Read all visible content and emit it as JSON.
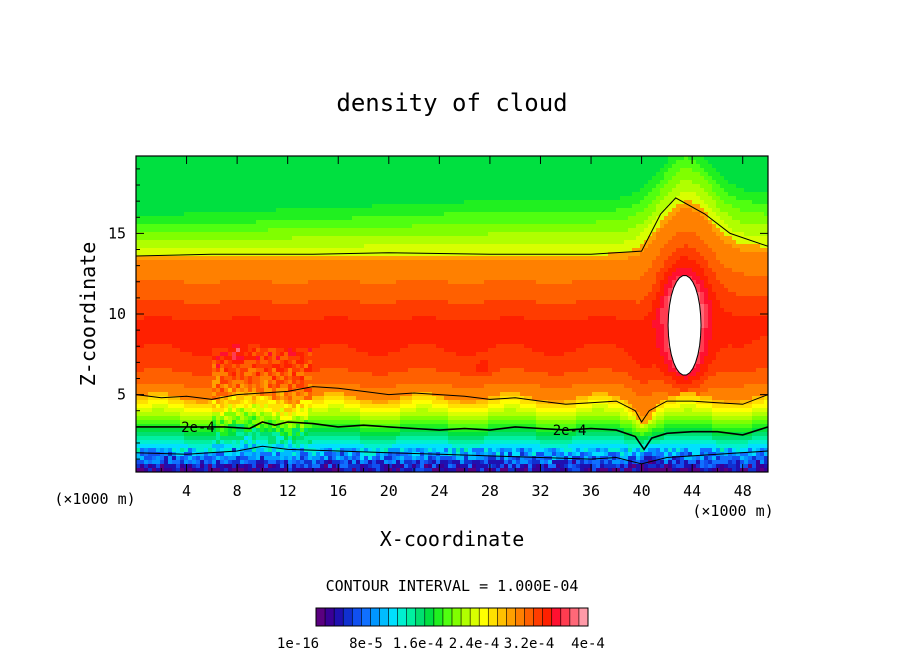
{
  "chart_data": {
    "type": "contour",
    "title": "density of cloud",
    "xlabel": "X-coordinate",
    "ylabel": "Z-coordinate",
    "x_unit_left": "(×1000 m)",
    "x_unit_right": "(×1000 m)",
    "xlim": [
      0,
      50
    ],
    "ylim": [
      0.2,
      19.8
    ],
    "xticks": [
      "4",
      "8",
      "12",
      "16",
      "20",
      "24",
      "28",
      "32",
      "36",
      "40",
      "44",
      "48"
    ],
    "yticks": [
      "5",
      "10",
      "15"
    ],
    "contour_interval_text": "CONTOUR INTERVAL = 1.000E-04",
    "contour_labels": [
      {
        "text": "2e-4",
        "x": 4.9,
        "z": 3.0
      },
      {
        "text": "2e-4",
        "x": 34.3,
        "z": 2.8
      }
    ],
    "contour_lines": [
      {
        "level": "1e-4",
        "points": [
          [
            0,
            13.6
          ],
          [
            6,
            13.7
          ],
          [
            14,
            13.7
          ],
          [
            20,
            13.8
          ],
          [
            28,
            13.7
          ],
          [
            36,
            13.7
          ],
          [
            40,
            13.9
          ],
          [
            41.5,
            16.2
          ],
          [
            42.7,
            17.2
          ],
          [
            45,
            16.2
          ],
          [
            47,
            15.0
          ],
          [
            50,
            14.2
          ]
        ]
      },
      {
        "level": "1e-4",
        "points": [
          [
            0,
            5.0
          ],
          [
            2,
            4.8
          ],
          [
            4,
            4.9
          ],
          [
            6,
            4.7
          ],
          [
            8,
            5.0
          ],
          [
            10,
            5.1
          ],
          [
            12,
            5.2
          ],
          [
            14,
            5.5
          ],
          [
            16,
            5.4
          ],
          [
            18,
            5.2
          ],
          [
            20,
            5.0
          ],
          [
            22,
            5.1
          ],
          [
            24,
            5.0
          ],
          [
            26,
            4.9
          ],
          [
            28,
            4.7
          ],
          [
            30,
            4.8
          ],
          [
            32,
            4.6
          ],
          [
            34,
            4.4
          ],
          [
            36,
            4.5
          ],
          [
            38,
            4.6
          ],
          [
            39.5,
            4.0
          ],
          [
            40,
            3.3
          ],
          [
            40.6,
            4.0
          ],
          [
            42,
            4.6
          ],
          [
            44,
            4.6
          ],
          [
            46,
            4.5
          ],
          [
            48,
            4.4
          ],
          [
            50,
            5.0
          ]
        ]
      },
      {
        "level": "2e-4",
        "points": [
          [
            0,
            3.0
          ],
          [
            3,
            3.0
          ],
          [
            5,
            3.0
          ],
          [
            7,
            3.0
          ],
          [
            9,
            2.9
          ],
          [
            10,
            3.3
          ],
          [
            11,
            3.1
          ],
          [
            12,
            3.3
          ],
          [
            14,
            3.2
          ],
          [
            16,
            3.0
          ],
          [
            18,
            3.1
          ],
          [
            20,
            3.0
          ],
          [
            22,
            2.9
          ],
          [
            24,
            2.8
          ],
          [
            26,
            2.9
          ],
          [
            28,
            2.8
          ],
          [
            30,
            3.0
          ],
          [
            32,
            2.9
          ],
          [
            34,
            2.8
          ],
          [
            36,
            2.9
          ],
          [
            38,
            2.8
          ],
          [
            39.5,
            2.4
          ],
          [
            40.2,
            1.6
          ],
          [
            40.8,
            2.3
          ],
          [
            42,
            2.6
          ],
          [
            44,
            2.7
          ],
          [
            46,
            2.7
          ],
          [
            48,
            2.5
          ],
          [
            50,
            3.0
          ]
        ]
      },
      {
        "level": "3e-4",
        "points": [
          [
            0,
            1.4
          ],
          [
            4,
            1.3
          ],
          [
            8,
            1.5
          ],
          [
            10,
            1.8
          ],
          [
            12,
            1.6
          ],
          [
            16,
            1.5
          ],
          [
            20,
            1.4
          ],
          [
            24,
            1.3
          ],
          [
            28,
            1.2
          ],
          [
            32,
            1.1
          ],
          [
            36,
            1.0
          ],
          [
            38,
            1.1
          ],
          [
            40,
            0.7
          ],
          [
            42,
            1.1
          ],
          [
            46,
            1.3
          ],
          [
            50,
            1.5
          ]
        ]
      }
    ],
    "fields": {
      "background_level": 0.48,
      "upper_edge_level": 0.4,
      "core_level": 0.85,
      "blob_peak_level": 1.0
    },
    "colorbar": {
      "colors": [
        "#5a0080",
        "#3a0096",
        "#1f10b0",
        "#1030d0",
        "#1050f0",
        "#1070ff",
        "#0096ff",
        "#00bcff",
        "#00e0ff",
        "#00f0d0",
        "#00f0a0",
        "#00e070",
        "#00e040",
        "#20f020",
        "#50ff10",
        "#80ff00",
        "#b0ff00",
        "#d8ff00",
        "#ffff00",
        "#ffe000",
        "#ffc000",
        "#ffa000",
        "#ff8000",
        "#ff6000",
        "#ff3c00",
        "#ff2000",
        "#ff1030",
        "#ff3c50",
        "#ff6878",
        "#ff9aa8"
      ],
      "labels": [
        "1e-16",
        "8e-5",
        "1.6e-4",
        "2.4e-4",
        "3.2e-4",
        "4e-4"
      ]
    }
  }
}
